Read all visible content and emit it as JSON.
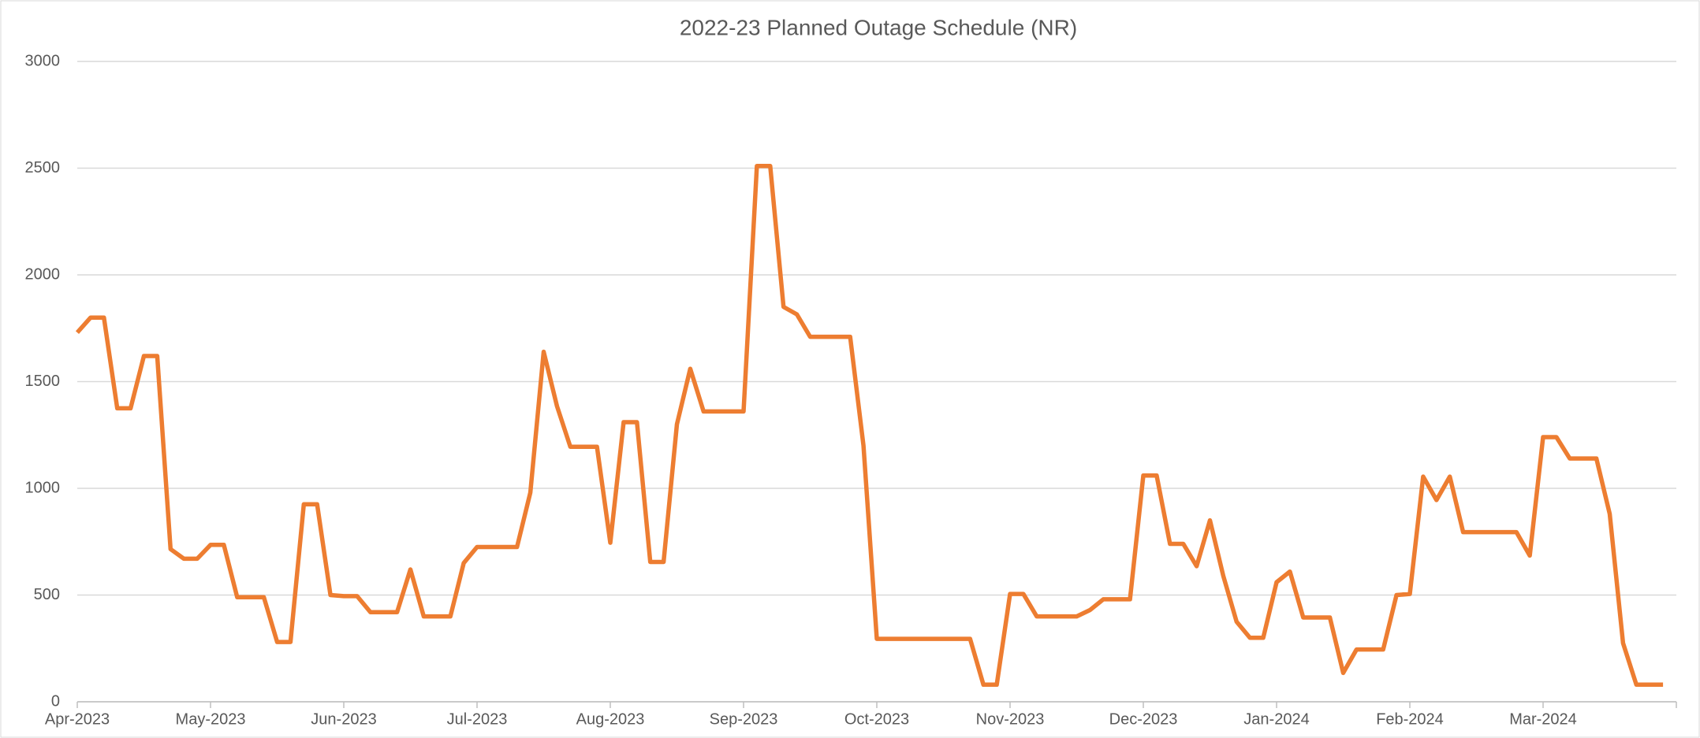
{
  "chart_data": {
    "type": "line",
    "title": "2022-23 Planned Outage Schedule (NR)",
    "categories": [
      "Apr-2023",
      null,
      null,
      null,
      null,
      null,
      null,
      null,
      null,
      null,
      "May-2023",
      null,
      null,
      null,
      null,
      null,
      null,
      null,
      null,
      null,
      "Jun-2023",
      null,
      null,
      null,
      null,
      null,
      null,
      null,
      null,
      null,
      "Jul-2023",
      null,
      null,
      null,
      null,
      null,
      null,
      null,
      null,
      null,
      "Aug-2023",
      null,
      null,
      null,
      null,
      null,
      null,
      null,
      null,
      null,
      "Sep-2023",
      null,
      null,
      null,
      null,
      null,
      null,
      null,
      null,
      null,
      "Oct-2023",
      null,
      null,
      null,
      null,
      null,
      null,
      null,
      null,
      null,
      "Nov-2023",
      null,
      null,
      null,
      null,
      null,
      null,
      null,
      null,
      null,
      "Dec-2023",
      null,
      null,
      null,
      null,
      null,
      null,
      null,
      null,
      null,
      "Jan-2024",
      null,
      null,
      null,
      null,
      null,
      null,
      null,
      null,
      null,
      "Feb-2024",
      null,
      null,
      null,
      null,
      null,
      null,
      null,
      null,
      null,
      "Mar-2024",
      null,
      null,
      null,
      null,
      null,
      null,
      null,
      null,
      null
    ],
    "values": [
      1730,
      1800,
      1800,
      1375,
      1375,
      1620,
      1620,
      715,
      670,
      670,
      735,
      735,
      490,
      490,
      490,
      280,
      280,
      925,
      925,
      500,
      495,
      495,
      420,
      420,
      420,
      620,
      400,
      400,
      400,
      650,
      725,
      725,
      725,
      725,
      980,
      1640,
      1385,
      1195,
      1195,
      1195,
      745,
      1310,
      1310,
      655,
      655,
      1300,
      1560,
      1360,
      1360,
      1360,
      1360,
      2510,
      2510,
      1850,
      1815,
      1710,
      1710,
      1710,
      1710,
      1200,
      295,
      295,
      295,
      295,
      295,
      295,
      295,
      295,
      80,
      80,
      505,
      505,
      400,
      400,
      400,
      400,
      430,
      480,
      480,
      480,
      1060,
      1060,
      740,
      740,
      635,
      850,
      590,
      375,
      300,
      300,
      560,
      610,
      395,
      395,
      395,
      135,
      245,
      245,
      245,
      500,
      505,
      1055,
      945,
      1055,
      795,
      795,
      795,
      795,
      795,
      685,
      1240,
      1240,
      1140,
      1140,
      1140,
      880,
      275,
      80,
      80,
      80
    ],
    "color": "#ed7d31",
    "ylim": [
      0,
      3000
    ],
    "yticks": [
      0,
      500,
      1000,
      1500,
      2000,
      2500,
      3000
    ],
    "grid": true
  }
}
